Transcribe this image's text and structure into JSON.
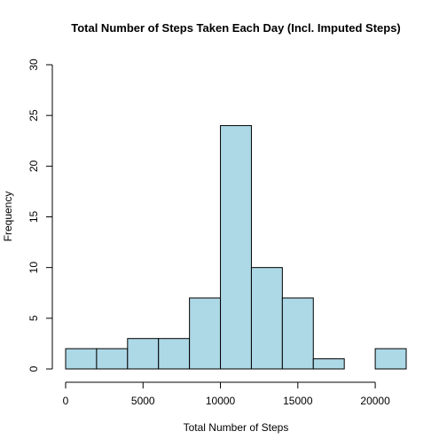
{
  "chart_data": {
    "type": "bar",
    "title": "Total Number of Steps Taken Each Day (Incl. Imputed Steps)",
    "xlabel": "Total Number of Steps",
    "ylabel": "Frequency",
    "bins": [
      {
        "start": 0,
        "end": 2000,
        "count": 2
      },
      {
        "start": 2000,
        "end": 4000,
        "count": 2
      },
      {
        "start": 4000,
        "end": 6000,
        "count": 3
      },
      {
        "start": 6000,
        "end": 8000,
        "count": 3
      },
      {
        "start": 8000,
        "end": 10000,
        "count": 7
      },
      {
        "start": 10000,
        "end": 12000,
        "count": 24
      },
      {
        "start": 12000,
        "end": 14000,
        "count": 10
      },
      {
        "start": 14000,
        "end": 16000,
        "count": 7
      },
      {
        "start": 16000,
        "end": 18000,
        "count": 1
      },
      {
        "start": 18000,
        "end": 20000,
        "count": 0
      },
      {
        "start": 20000,
        "end": 22000,
        "count": 2
      }
    ],
    "xlim": [
      0,
      22000
    ],
    "ylim": [
      0,
      30
    ],
    "xticks": [
      0,
      5000,
      10000,
      15000,
      20000
    ],
    "yticks": [
      0,
      5,
      10,
      15,
      20,
      25,
      30
    ],
    "bar_color": "#add8e6",
    "grid": false
  }
}
